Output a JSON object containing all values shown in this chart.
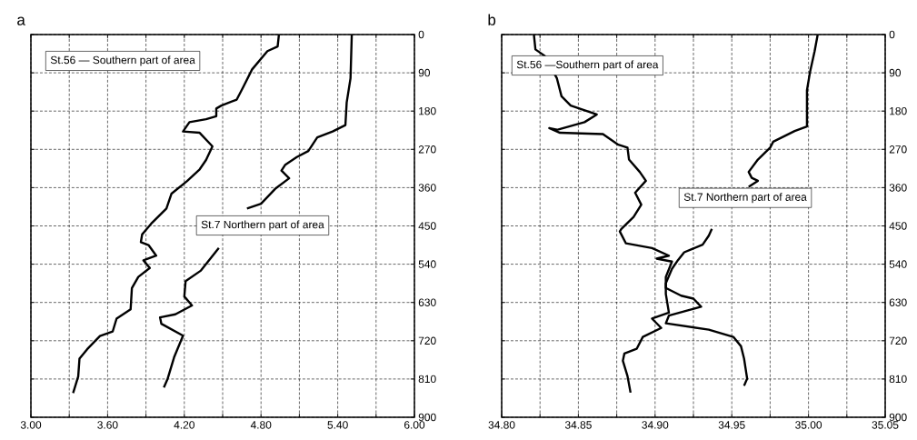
{
  "chart_data": [
    {
      "type": "line",
      "title": "a",
      "grid": true,
      "line_style": "solid",
      "marker": "none",
      "xlim": [
        3.0,
        6.0
      ],
      "ylim": [
        900,
        0
      ],
      "xticks": [
        {
          "value": 3.0,
          "label": "3.00"
        },
        {
          "value": 3.3,
          "label": null
        },
        {
          "value": 3.6,
          "label": "3.60"
        },
        {
          "value": 3.9,
          "label": null
        },
        {
          "value": 4.2,
          "label": "4.20"
        },
        {
          "value": 4.5,
          "label": null
        },
        {
          "value": 4.8,
          "label": "4.80"
        },
        {
          "value": 5.1,
          "label": null
        },
        {
          "value": 5.4,
          "label": "5.40"
        },
        {
          "value": 5.7,
          "label": null
        },
        {
          "value": 6.0,
          "label": "6.00"
        }
      ],
      "yticks": [
        0,
        90,
        180,
        270,
        360,
        450,
        540,
        630,
        720,
        810,
        900
      ],
      "annotations": [
        "St.56 — Southern part of area",
        "St.7 Northern part of area"
      ],
      "series": [
        {
          "color": "#000000",
          "x": [
            4.94,
            4.93,
            4.85,
            4.73,
            4.66,
            4.61,
            4.49,
            4.45,
            4.45,
            4.37,
            4.24,
            4.19,
            4.32,
            4.42,
            4.37,
            4.32,
            4.22,
            4.1,
            4.06,
            3.94,
            3.87,
            3.86,
            3.92,
            3.98,
            3.88,
            3.93,
            3.84,
            3.79,
            3.78,
            3.67,
            3.64,
            3.54,
            3.44,
            3.38,
            3.37,
            3.33
          ],
          "values": [
            0,
            28,
            39,
            82,
            124,
            153,
            167,
            174,
            192,
            199,
            206,
            228,
            231,
            263,
            295,
            317,
            345,
            374,
            409,
            445,
            470,
            488,
            495,
            520,
            531,
            549,
            570,
            596,
            646,
            668,
            698,
            709,
            740,
            762,
            804,
            843
          ]
        },
        {
          "color": "#000000",
          "x": [
            5.51,
            5.5,
            5.47,
            5.46,
            5.36,
            5.24,
            5.17,
            5.08,
            4.99,
            4.96,
            5.02,
            4.91,
            4.8,
            4.69,
            4.68,
            4.47,
            4.33,
            4.21,
            4.2,
            4.26,
            4.13,
            4.01,
            4.02,
            4.19,
            4.12,
            4.07,
            4.04
          ],
          "values": [
            0,
            103,
            160,
            213,
            228,
            242,
            274,
            288,
            306,
            320,
            338,
            363,
            398,
            409,
            null,
            502,
            555,
            580,
            616,
            637,
            658,
            665,
            680,
            708,
            759,
            809,
            830
          ]
        }
      ]
    },
    {
      "type": "line",
      "title": "b",
      "grid": true,
      "line_style": "solid",
      "marker": "none",
      "xlim": [
        34.8,
        35.05
      ],
      "ylim": [
        900,
        0
      ],
      "xticks": [
        {
          "value": 34.8,
          "label": "34.80"
        },
        {
          "value": 34.825,
          "label": null
        },
        {
          "value": 34.85,
          "label": "34.85"
        },
        {
          "value": 34.875,
          "label": null
        },
        {
          "value": 34.9,
          "label": "34.90"
        },
        {
          "value": 34.925,
          "label": null
        },
        {
          "value": 34.95,
          "label": "34.95"
        },
        {
          "value": 34.975,
          "label": null
        },
        {
          "value": 35.0,
          "label": "35.00"
        },
        {
          "value": 35.025,
          "label": null
        },
        {
          "value": 35.05,
          "label": "35.05"
        }
      ],
      "yticks": [
        0,
        90,
        180,
        270,
        360,
        450,
        540,
        630,
        720,
        810,
        900
      ],
      "annotations": [
        "St.56 —Southern part of area",
        "St.7 Northern part of area"
      ],
      "series": [
        {
          "color": "#000000",
          "x": [
            34.821,
            34.822,
            34.828,
            34.836,
            34.839,
            34.845,
            34.862,
            34.854,
            34.836,
            34.831,
            34.838,
            34.866,
            34.876,
            34.882,
            34.883,
            34.89,
            34.894,
            34.887,
            34.891,
            34.886,
            34.878,
            34.877,
            34.881,
            34.898,
            34.909,
            34.901,
            34.911,
            34.907,
            34.907,
            34.917,
            34.925,
            34.93,
            34.923,
            34.909,
            34.907,
            34.935,
            34.951,
            34.956,
            34.958,
            34.96,
            34.958
          ],
          "values": [
            0,
            35,
            50,
            103,
            145,
            167,
            188,
            206,
            224,
            220,
            231,
            234,
            259,
            266,
            294,
            323,
            344,
            372,
            400,
            429,
            457,
            463,
            491,
            502,
            520,
            527,
            534,
            570,
            596,
            614,
            621,
            640,
            647,
            661,
            679,
            694,
            711,
            733,
            762,
            809,
            826
          ]
        },
        {
          "color": "#000000",
          "x": [
            35.006,
            35.004,
            35.001,
            34.999,
            34.999,
            34.991,
            34.977,
            34.975,
            34.967,
            34.961,
            34.963,
            34.967,
            34.961,
            34.941,
            34.937,
            34.935,
            34.931,
            34.919,
            34.915,
            34.911,
            34.907,
            34.907,
            34.909,
            34.898,
            34.904,
            34.892,
            34.888,
            34.88,
            34.879,
            34.882,
            34.884
          ],
          "values": [
            0,
            39,
            88,
            131,
            216,
            227,
            252,
            266,
            294,
            323,
            337,
            344,
            358,
            null,
            457,
            473,
            494,
            512,
            530,
            551,
            585,
            610,
            654,
            668,
            690,
            711,
            739,
            750,
            767,
            803,
            842
          ]
        }
      ]
    }
  ]
}
